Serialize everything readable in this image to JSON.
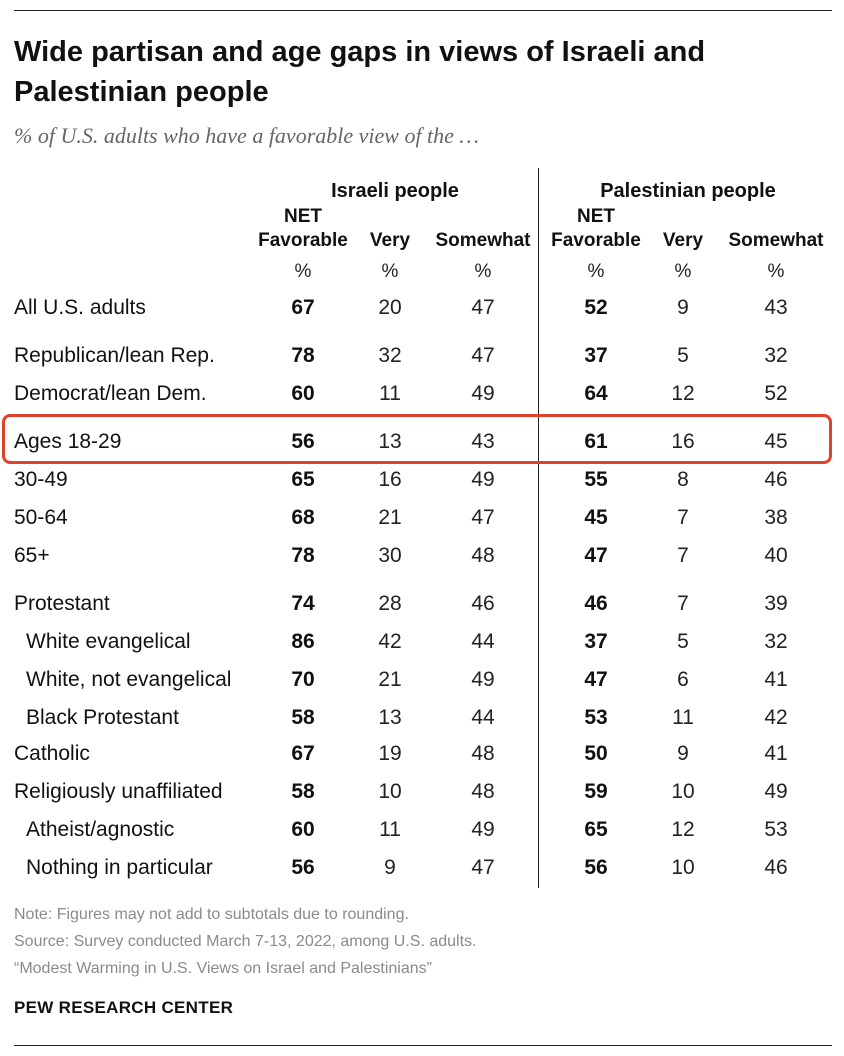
{
  "chart_data": {
    "type": "table",
    "title": "Wide partisan and age gaps in views of Israeli and Palestinian people",
    "subtitle": "% of U.S. adults who have a favorable view of the …",
    "groups": [
      "Israeli people",
      "Palestinian people"
    ],
    "columns": [
      {
        "line1": "NET",
        "line2": "Favorable",
        "unit": "%"
      },
      {
        "line1": "",
        "line2": "Very",
        "unit": "%"
      },
      {
        "line1": "",
        "line2": "Somewhat",
        "unit": "%"
      },
      {
        "line1": "NET",
        "line2": "Favorable",
        "unit": "%"
      },
      {
        "line1": "",
        "line2": "Very",
        "unit": "%"
      },
      {
        "line1": "",
        "line2": "Somewhat",
        "unit": "%"
      }
    ],
    "rows": [
      {
        "label": "All U.S. adults",
        "indent": false,
        "highlight": false,
        "values": [
          67,
          20,
          47,
          52,
          9,
          43
        ]
      },
      {
        "label": "Republican/lean Rep.",
        "indent": false,
        "highlight": false,
        "values": [
          78,
          32,
          47,
          37,
          5,
          32
        ]
      },
      {
        "label": "Democrat/lean Dem.",
        "indent": false,
        "highlight": false,
        "values": [
          60,
          11,
          49,
          64,
          12,
          52
        ]
      },
      {
        "label": "Ages 18-29",
        "indent": false,
        "highlight": true,
        "values": [
          56,
          13,
          43,
          61,
          16,
          45
        ]
      },
      {
        "label": "30-49",
        "indent": false,
        "highlight": false,
        "values": [
          65,
          16,
          49,
          55,
          8,
          46
        ]
      },
      {
        "label": "50-64",
        "indent": false,
        "highlight": false,
        "values": [
          68,
          21,
          47,
          45,
          7,
          38
        ]
      },
      {
        "label": "65+",
        "indent": false,
        "highlight": false,
        "values": [
          78,
          30,
          48,
          47,
          7,
          40
        ]
      },
      {
        "label": "Protestant",
        "indent": false,
        "highlight": false,
        "values": [
          74,
          28,
          46,
          46,
          7,
          39
        ]
      },
      {
        "label": "White evangelical",
        "indent": true,
        "highlight": false,
        "values": [
          86,
          42,
          44,
          37,
          5,
          32
        ]
      },
      {
        "label": "White, not evangelical",
        "indent": true,
        "highlight": false,
        "values": [
          70,
          21,
          49,
          47,
          6,
          41
        ]
      },
      {
        "label": "Black Protestant",
        "indent": true,
        "highlight": false,
        "values": [
          58,
          13,
          44,
          53,
          11,
          42
        ]
      },
      {
        "label": "Catholic",
        "indent": false,
        "highlight": false,
        "values": [
          67,
          19,
          48,
          50,
          9,
          41
        ]
      },
      {
        "label": "Religiously unaffiliated",
        "indent": false,
        "highlight": false,
        "values": [
          58,
          10,
          48,
          59,
          10,
          49
        ]
      },
      {
        "label": "Atheist/agnostic",
        "indent": true,
        "highlight": false,
        "values": [
          60,
          11,
          49,
          65,
          12,
          53
        ]
      },
      {
        "label": "Nothing in particular",
        "indent": true,
        "highlight": false,
        "values": [
          56,
          9,
          47,
          56,
          10,
          46
        ]
      }
    ]
  },
  "notes": {
    "note": "Note: Figures may not add to subtotals due to rounding.",
    "source": "Source: Survey conducted March 7-13, 2022, among U.S. adults.",
    "report": "“Modest Warming in U.S. Views on Israel and Palestinians”"
  },
  "brand": "PEW RESEARCH CENTER",
  "colors": {
    "highlight": "#e0412a",
    "note_text": "#8a8a8a"
  }
}
